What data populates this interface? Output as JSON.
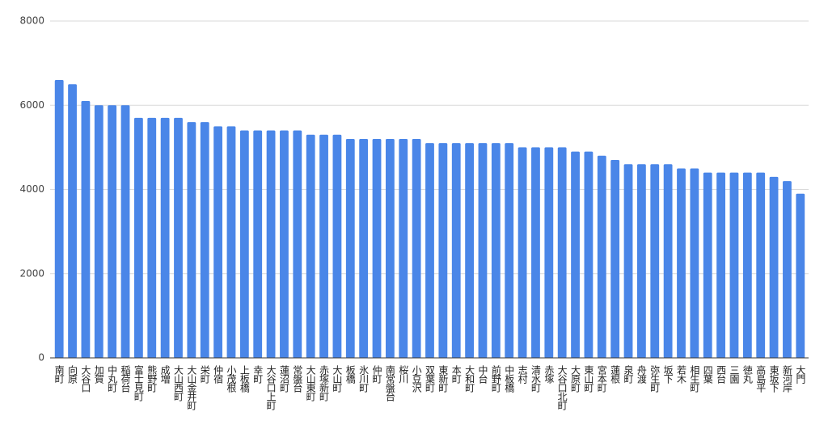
{
  "chart_data": {
    "type": "bar",
    "categories": [
      "南町",
      "向原",
      "大谷口",
      "加賀",
      "中丸町",
      "稲荷台",
      "富士見町",
      "熊野町",
      "成増",
      "大山西町",
      "大山金井町",
      "栄町",
      "仲宿",
      "小茂根",
      "上板橋",
      "幸町",
      "大谷口上町",
      "蓮沼町",
      "常盤台",
      "大山東町",
      "赤塚新町",
      "大山町",
      "板橋",
      "氷川町",
      "仲町",
      "南常盤台",
      "桜川",
      "小豆沢",
      "双葉町",
      "東新町",
      "本町",
      "大和町",
      "中台",
      "前野町",
      "中板橋",
      "志村",
      "清水町",
      "赤塚",
      "大谷口北町",
      "大原町",
      "東山町",
      "宮本町",
      "蓮根",
      "泉町",
      "舟渡",
      "弥生町",
      "坂下",
      "若木",
      "相生町",
      "四葉",
      "西台",
      "三園",
      "徳丸",
      "高島平",
      "東坂下",
      "新河岸",
      "大門"
    ],
    "values": [
      6600,
      6500,
      6100,
      6000,
      6000,
      6000,
      5700,
      5700,
      5700,
      5700,
      5600,
      5600,
      5500,
      5500,
      5400,
      5400,
      5400,
      5400,
      5400,
      5300,
      5300,
      5300,
      5200,
      5200,
      5200,
      5200,
      5200,
      5200,
      5100,
      5100,
      5100,
      5100,
      5100,
      5100,
      5100,
      5000,
      5000,
      5000,
      5000,
      4900,
      4900,
      4800,
      4700,
      4600,
      4600,
      4600,
      4600,
      4500,
      4500,
      4400,
      4400,
      4400,
      4400,
      4400,
      4300,
      4200,
      3900
    ],
    "color": "#4a86e8",
    "ylim": [
      0,
      8000
    ],
    "yticks": [
      0,
      2000,
      4000,
      6000,
      8000
    ],
    "grid": true
  }
}
